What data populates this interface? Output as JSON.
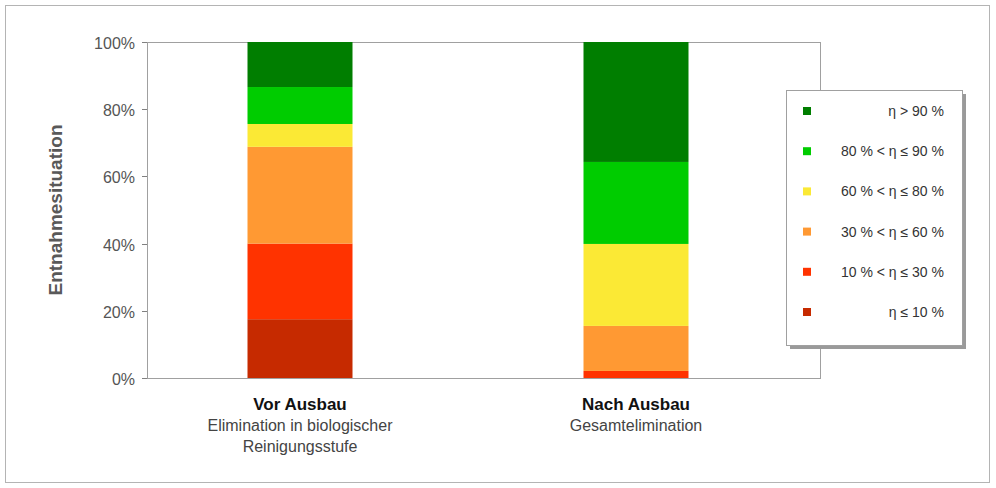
{
  "chart_data": {
    "type": "bar",
    "stacked": true,
    "y_label": "Entnahmesituation",
    "categories": [
      "Vor Ausbau\nElimination in biologischer\nReinigungsstufe",
      "Nach Ausbau\nGesamtelimination"
    ],
    "series": [
      {
        "name": "η ≤ 10 %",
        "color": "#c62a00",
        "values": [
          17.5,
          0
        ]
      },
      {
        "name": "10 % < η ≤ 30 %",
        "color": "#ff3300",
        "values": [
          22.5,
          2.1
        ]
      },
      {
        "name": "30 % < η ≤ 60 %",
        "color": "#ff9933",
        "values": [
          28.8,
          13.4
        ]
      },
      {
        "name": "60 % < η ≤ 80 %",
        "color": "#fbe935",
        "values": [
          6.8,
          24.4
        ]
      },
      {
        "name": "80 % < η ≤ 90 %",
        "color": "#00cc00",
        "values": [
          11.0,
          24.4
        ]
      },
      {
        "name": "η > 90 %",
        "color": "#007e00",
        "values": [
          13.4,
          35.7
        ]
      }
    ],
    "ylim": [
      0,
      100
    ],
    "yticks": [
      {
        "value": 0,
        "label": "0%"
      },
      {
        "value": 20,
        "label": "20%"
      },
      {
        "value": 40,
        "label": "40%"
      },
      {
        "value": 60,
        "label": "60%"
      },
      {
        "value": 80,
        "label": "80%"
      },
      {
        "value": 100,
        "label": "100%"
      }
    ],
    "grid": false,
    "legend": "right"
  }
}
